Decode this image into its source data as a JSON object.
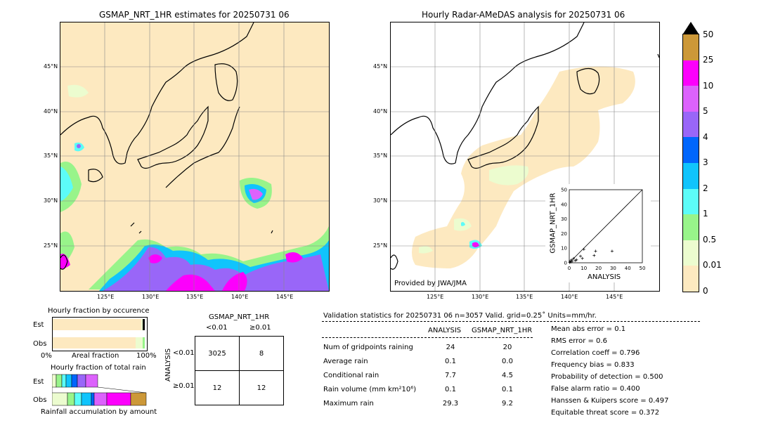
{
  "left_map": {
    "title": "GSMAP_NRT_1HR estimates for 20250731 06",
    "lat_labels": [
      "45°N",
      "40°N",
      "35°N",
      "30°N",
      "25°N"
    ],
    "lon_labels": [
      "125°E",
      "130°E",
      "135°E",
      "140°E",
      "145°E"
    ]
  },
  "right_map": {
    "title": "Hourly Radar-AMeDAS analysis for 20250731 06",
    "lat_labels": [
      "45°N",
      "40°N",
      "35°N",
      "30°N",
      "25°N"
    ],
    "lon_labels": [
      "125°E",
      "130°E",
      "135°E",
      "140°E",
      "145°E"
    ],
    "credit": "Provided by JWA/JMA"
  },
  "colorbar": {
    "labels": [
      "0",
      "0.01",
      "0.5",
      "1",
      "2",
      "3",
      "4",
      "5",
      "10",
      "25",
      "50"
    ],
    "colors": [
      "#fde9c0",
      "#ecfccf",
      "#98f48a",
      "#5cfcf8",
      "#10c4fc",
      "#0066fc",
      "#9966f8",
      "#dc62fc",
      "#fc00fc",
      "#cc9838"
    ]
  },
  "chart_data": [
    {
      "type": "scatter",
      "title": "",
      "xlabel": "ANALYSIS",
      "ylabel": "GSMAP_NRT_1HR",
      "xlim": [
        0,
        50
      ],
      "ylim": [
        0,
        50
      ],
      "ticks": [
        "0",
        "10",
        "20",
        "30",
        "40",
        "50"
      ],
      "diagonal": true,
      "points": [
        [
          0.3,
          0.2
        ],
        [
          0.5,
          1.0
        ],
        [
          1.0,
          0.5
        ],
        [
          1.5,
          2.0
        ],
        [
          2.0,
          1.0
        ],
        [
          3.0,
          3.0
        ],
        [
          4.0,
          1.5
        ],
        [
          5.0,
          2.0
        ],
        [
          7.7,
          4.5
        ],
        [
          9.0,
          3.0
        ],
        [
          10.0,
          9.2
        ],
        [
          17.0,
          5.0
        ],
        [
          18.0,
          8.0
        ],
        [
          29.3,
          8.0
        ]
      ]
    },
    {
      "type": "bar",
      "title": "Hourly fraction by occurence",
      "categories": [
        "Est",
        "Obs"
      ],
      "xlabel": "Areal fraction",
      "xlim_labels": [
        "0%",
        "100%"
      ],
      "series": [
        {
          "name": "no rain",
          "values": [
            0.96,
            0.9
          ]
        },
        {
          "name": "rain",
          "values": [
            0.04,
            0.1
          ]
        }
      ]
    },
    {
      "type": "bar",
      "title": "Hourly fraction of total rain",
      "categories": [
        "Est",
        "Obs"
      ],
      "xlabel": "Rainfall accumulation by amount"
    },
    {
      "type": "table",
      "title": "GSMAP_NRT_1HR",
      "col_headers": [
        "<0.01",
        "≥0.01"
      ],
      "row_title": "ANALYSIS",
      "row_headers": [
        "<0.01",
        "≥0.01"
      ],
      "cells": [
        [
          "3025",
          "8"
        ],
        [
          "12",
          "12"
        ]
      ]
    }
  ],
  "stats": {
    "header": "Validation statistics for 20250731 06  n=3057 Valid. grid=0.25˚ Units=mm/hr.",
    "col_analysis": "ANALYSIS",
    "col_gsmap": "GSMAP_NRT_1HR",
    "rows": [
      {
        "label": "Num of gridpoints raining",
        "a": "24",
        "g": "20"
      },
      {
        "label": "Average rain",
        "a": "0.1",
        "g": "0.0"
      },
      {
        "label": "Conditional rain",
        "a": "7.7",
        "g": "4.5"
      },
      {
        "label": "Rain volume (mm km²10⁶)",
        "a": "0.1",
        "g": "0.1"
      },
      {
        "label": "Maximum rain",
        "a": "29.3",
        "g": "9.2"
      }
    ],
    "scores": [
      "Mean abs error =    0.1",
      "RMS error =    0.6",
      "Correlation coeff =  0.796",
      "Frequency bias =  0.833",
      "Probability of detection =  0.500",
      "False alarm ratio =  0.400",
      "Hanssen & Kuipers score =  0.497",
      "Equitable threat score =  0.372"
    ]
  }
}
